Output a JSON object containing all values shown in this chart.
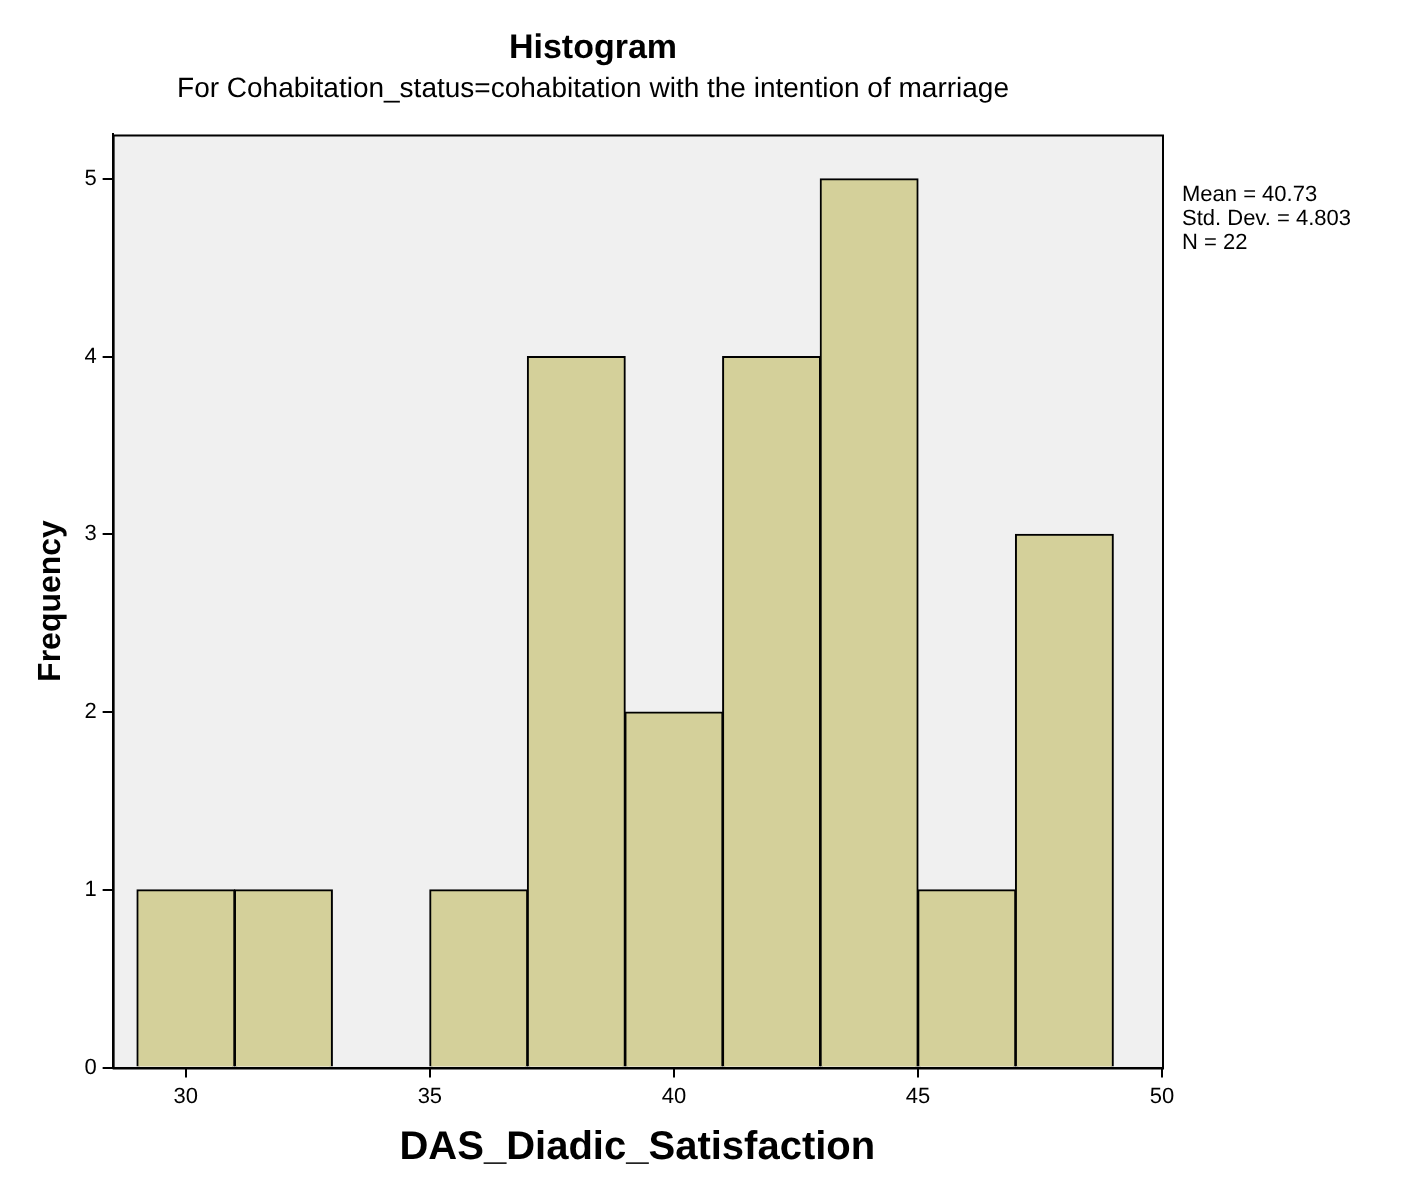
{
  "chart_data": {
    "type": "histogram",
    "title": "Histogram",
    "subtitle": "For Cohabitation_status=cohabitation with the intention of marriage",
    "xlabel": "DAS_Diadic_Satisfaction",
    "ylabel": "Frequency",
    "bins": [
      29,
      31,
      33,
      35,
      37,
      39,
      41,
      43,
      45,
      47,
      49
    ],
    "values": [
      1,
      1,
      0,
      1,
      4,
      2,
      4,
      5,
      1,
      3
    ],
    "color": "#d4d09a",
    "xlim": [
      28.5,
      50
    ],
    "xticks": [
      30,
      35,
      40,
      45,
      50
    ],
    "ylim": [
      0,
      5.25
    ],
    "yticks": [
      0,
      1,
      2,
      3,
      4,
      5
    ],
    "annotations": [
      "Mean = 40.73",
      "Std. Dev. = 4.803",
      "N = 22"
    ]
  }
}
